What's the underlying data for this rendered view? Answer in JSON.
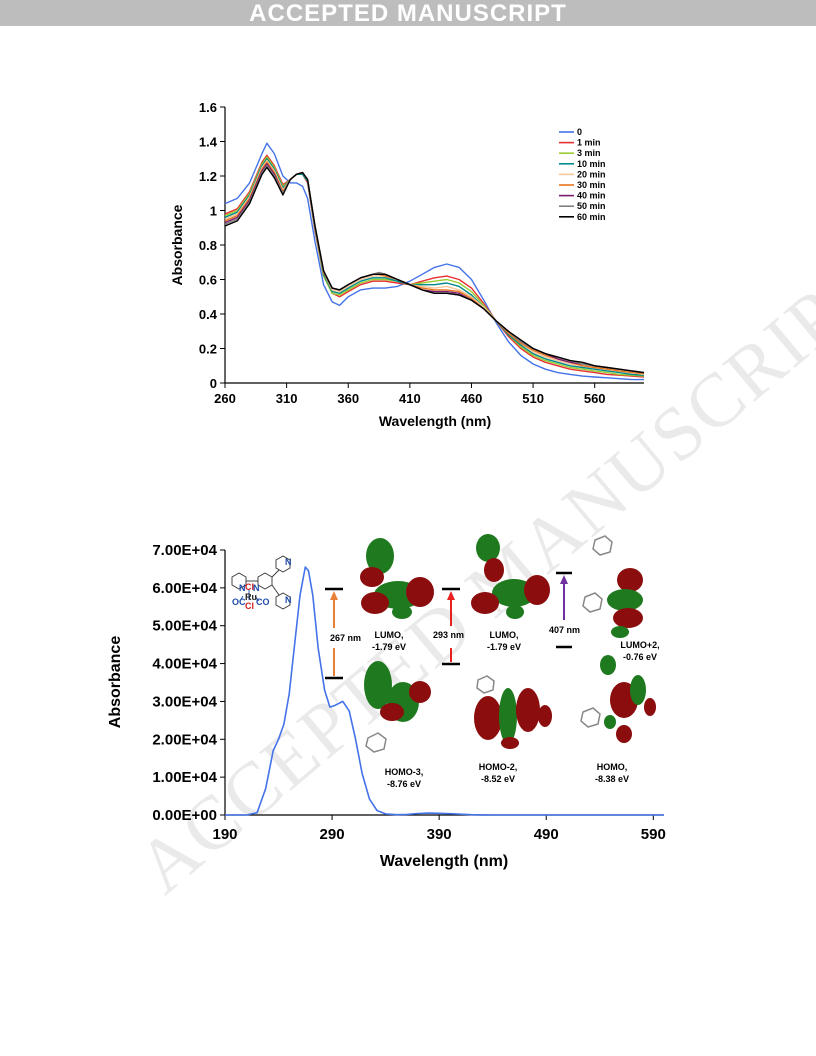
{
  "banner": "ACCEPTED MANUSCRIPT",
  "watermark": "ACCEPTED MANUSCRIPT",
  "chart_data": [
    {
      "type": "line",
      "xlabel": "Wavelength (nm)",
      "ylabel": "Absorbance",
      "xlim": [
        260,
        600
      ],
      "ylim": [
        0,
        1.6
      ],
      "xticks": [
        "260",
        "310",
        "360",
        "410",
        "460",
        "510",
        "560"
      ],
      "yticks": [
        "0",
        "0.2",
        "0.4",
        "0.6",
        "0.8",
        "1",
        "1.2",
        "1.4",
        "1.6"
      ],
      "legend_position": "top-right",
      "x": [
        260,
        270,
        280,
        290,
        294,
        300,
        307,
        313,
        318,
        323,
        327,
        333,
        340,
        347,
        353,
        360,
        370,
        380,
        385,
        390,
        400,
        410,
        420,
        430,
        440,
        450,
        460,
        470,
        480,
        490,
        500,
        510,
        520,
        530,
        540,
        550,
        560,
        570,
        580,
        590,
        600
      ],
      "series": [
        {
          "name": "0",
          "color": "#4472e8",
          "values": [
            1.04,
            1.07,
            1.16,
            1.33,
            1.39,
            1.33,
            1.2,
            1.16,
            1.16,
            1.14,
            1.07,
            0.82,
            0.57,
            0.47,
            0.45,
            0.5,
            0.54,
            0.55,
            0.55,
            0.55,
            0.56,
            0.59,
            0.63,
            0.67,
            0.69,
            0.67,
            0.6,
            0.48,
            0.35,
            0.24,
            0.16,
            0.11,
            0.08,
            0.06,
            0.05,
            0.04,
            0.035,
            0.03,
            0.025,
            0.02,
            0.02
          ]
        },
        {
          "name": "1 min",
          "color": "#e83030",
          "values": [
            0.98,
            1.01,
            1.11,
            1.28,
            1.32,
            1.26,
            1.15,
            1.18,
            1.21,
            1.21,
            1.16,
            0.88,
            0.62,
            0.52,
            0.5,
            0.53,
            0.57,
            0.59,
            0.59,
            0.59,
            0.58,
            0.57,
            0.59,
            0.61,
            0.62,
            0.6,
            0.55,
            0.46,
            0.36,
            0.27,
            0.2,
            0.15,
            0.12,
            0.1,
            0.08,
            0.07,
            0.06,
            0.05,
            0.045,
            0.04,
            0.035
          ]
        },
        {
          "name": "3 min",
          "color": "#9acd32",
          "values": [
            0.97,
            1.0,
            1.1,
            1.27,
            1.31,
            1.25,
            1.14,
            1.18,
            1.21,
            1.21,
            1.17,
            0.89,
            0.62,
            0.52,
            0.51,
            0.54,
            0.58,
            0.6,
            0.6,
            0.6,
            0.59,
            0.57,
            0.58,
            0.59,
            0.6,
            0.58,
            0.53,
            0.45,
            0.36,
            0.28,
            0.21,
            0.16,
            0.13,
            0.11,
            0.09,
            0.08,
            0.07,
            0.06,
            0.05,
            0.045,
            0.04
          ]
        },
        {
          "name": "10 min",
          "color": "#008b8b",
          "values": [
            0.96,
            0.99,
            1.09,
            1.26,
            1.3,
            1.24,
            1.13,
            1.18,
            1.21,
            1.21,
            1.17,
            0.89,
            0.63,
            0.53,
            0.52,
            0.55,
            0.59,
            0.61,
            0.61,
            0.61,
            0.59,
            0.57,
            0.57,
            0.57,
            0.58,
            0.56,
            0.51,
            0.44,
            0.36,
            0.28,
            0.22,
            0.17,
            0.14,
            0.12,
            0.1,
            0.09,
            0.08,
            0.07,
            0.06,
            0.05,
            0.045
          ]
        },
        {
          "name": "20 min",
          "color": "#f5c69a",
          "values": [
            0.95,
            0.98,
            1.08,
            1.25,
            1.29,
            1.23,
            1.12,
            1.18,
            1.21,
            1.22,
            1.18,
            0.9,
            0.64,
            0.54,
            0.53,
            0.56,
            0.6,
            0.62,
            0.62,
            0.62,
            0.6,
            0.57,
            0.56,
            0.55,
            0.56,
            0.54,
            0.5,
            0.44,
            0.36,
            0.29,
            0.23,
            0.18,
            0.15,
            0.13,
            0.11,
            0.1,
            0.09,
            0.08,
            0.07,
            0.06,
            0.05
          ]
        },
        {
          "name": "30 min",
          "color": "#e8761f",
          "values": [
            0.94,
            0.97,
            1.07,
            1.24,
            1.28,
            1.22,
            1.11,
            1.18,
            1.21,
            1.22,
            1.18,
            0.9,
            0.64,
            0.55,
            0.54,
            0.57,
            0.61,
            0.63,
            0.63,
            0.62,
            0.6,
            0.57,
            0.55,
            0.54,
            0.54,
            0.53,
            0.49,
            0.43,
            0.36,
            0.29,
            0.23,
            0.19,
            0.16,
            0.14,
            0.12,
            0.1,
            0.09,
            0.08,
            0.07,
            0.06,
            0.055
          ]
        },
        {
          "name": "40 min",
          "color": "#7b1b6e",
          "values": [
            0.93,
            0.96,
            1.06,
            1.23,
            1.27,
            1.21,
            1.1,
            1.18,
            1.21,
            1.22,
            1.18,
            0.91,
            0.65,
            0.55,
            0.54,
            0.57,
            0.61,
            0.63,
            0.64,
            0.63,
            0.6,
            0.57,
            0.54,
            0.53,
            0.53,
            0.52,
            0.48,
            0.43,
            0.36,
            0.3,
            0.24,
            0.2,
            0.17,
            0.14,
            0.12,
            0.11,
            0.1,
            0.09,
            0.08,
            0.07,
            0.06
          ]
        },
        {
          "name": "50 min",
          "color": "#808080",
          "values": [
            0.92,
            0.95,
            1.05,
            1.22,
            1.26,
            1.2,
            1.1,
            1.18,
            1.21,
            1.22,
            1.18,
            0.91,
            0.65,
            0.55,
            0.54,
            0.57,
            0.61,
            0.63,
            0.64,
            0.63,
            0.6,
            0.57,
            0.54,
            0.52,
            0.52,
            0.51,
            0.48,
            0.43,
            0.36,
            0.3,
            0.24,
            0.2,
            0.17,
            0.15,
            0.13,
            0.11,
            0.1,
            0.09,
            0.08,
            0.07,
            0.06
          ]
        },
        {
          "name": "60 min",
          "color": "#000000",
          "values": [
            0.91,
            0.94,
            1.04,
            1.21,
            1.25,
            1.19,
            1.09,
            1.18,
            1.21,
            1.22,
            1.18,
            0.91,
            0.65,
            0.55,
            0.54,
            0.57,
            0.61,
            0.63,
            0.63,
            0.63,
            0.6,
            0.57,
            0.54,
            0.52,
            0.52,
            0.51,
            0.48,
            0.43,
            0.36,
            0.3,
            0.25,
            0.2,
            0.17,
            0.15,
            0.13,
            0.12,
            0.1,
            0.09,
            0.08,
            0.07,
            0.06
          ]
        }
      ]
    },
    {
      "type": "line",
      "xlabel": "Wavelength (nm)",
      "ylabel": "Absorbance",
      "xlim": [
        190,
        600
      ],
      "ylim": [
        0,
        70000
      ],
      "xticks": [
        "190",
        "290",
        "390",
        "490",
        "590"
      ],
      "yticks": [
        "0.00E+00",
        "1.00E+04",
        "2.00E+04",
        "3.00E+04",
        "4.00E+04",
        "5.00E+04",
        "6.00E+04",
        "7.00E+04"
      ],
      "x": [
        190,
        210,
        220,
        228,
        235,
        240,
        245,
        250,
        255,
        260,
        265,
        268,
        272,
        277,
        283,
        288,
        293,
        300,
        306,
        312,
        318,
        325,
        332,
        340,
        350,
        360,
        370,
        380,
        390,
        400,
        410,
        420,
        430,
        440,
        450,
        470,
        500,
        550,
        600
      ],
      "series": [
        {
          "color": "#4472e8",
          "values": [
            0,
            0,
            600,
            7000,
            17000,
            20000,
            24000,
            32000,
            45000,
            58000,
            65500,
            64500,
            58000,
            44000,
            33000,
            28500,
            29000,
            30000,
            27500,
            20000,
            11000,
            4200,
            1200,
            300,
            80,
            150,
            400,
            500,
            450,
            350,
            200,
            80,
            30,
            10,
            0,
            0,
            0,
            0,
            0
          ]
        }
      ],
      "annotations": {
        "transitions": [
          {
            "label": "267 nm",
            "color": "#e8803a"
          },
          {
            "label": "293 nm",
            "color": "#e82020"
          },
          {
            "label": "407 nm",
            "color": "#7030a0"
          }
        ],
        "orbitals": [
          {
            "line1": "LUMO,",
            "line2": "-1.79 eV"
          },
          {
            "line1": "LUMO,",
            "line2": "-1.79 eV"
          },
          {
            "line1": "LUMO+2,",
            "line2": "-0.76 eV"
          },
          {
            "line1": "HOMO-3,",
            "line2": "-8.76 eV"
          },
          {
            "line1": "HOMO-2,",
            "line2": "-8.52 eV"
          },
          {
            "line1": "HOMO,",
            "line2": "-8.38 eV"
          }
        ],
        "structure_labels": [
          "Cl",
          "Ru",
          "Cl",
          "OC",
          "CO",
          "N",
          "N",
          "N",
          "N"
        ]
      }
    }
  ]
}
